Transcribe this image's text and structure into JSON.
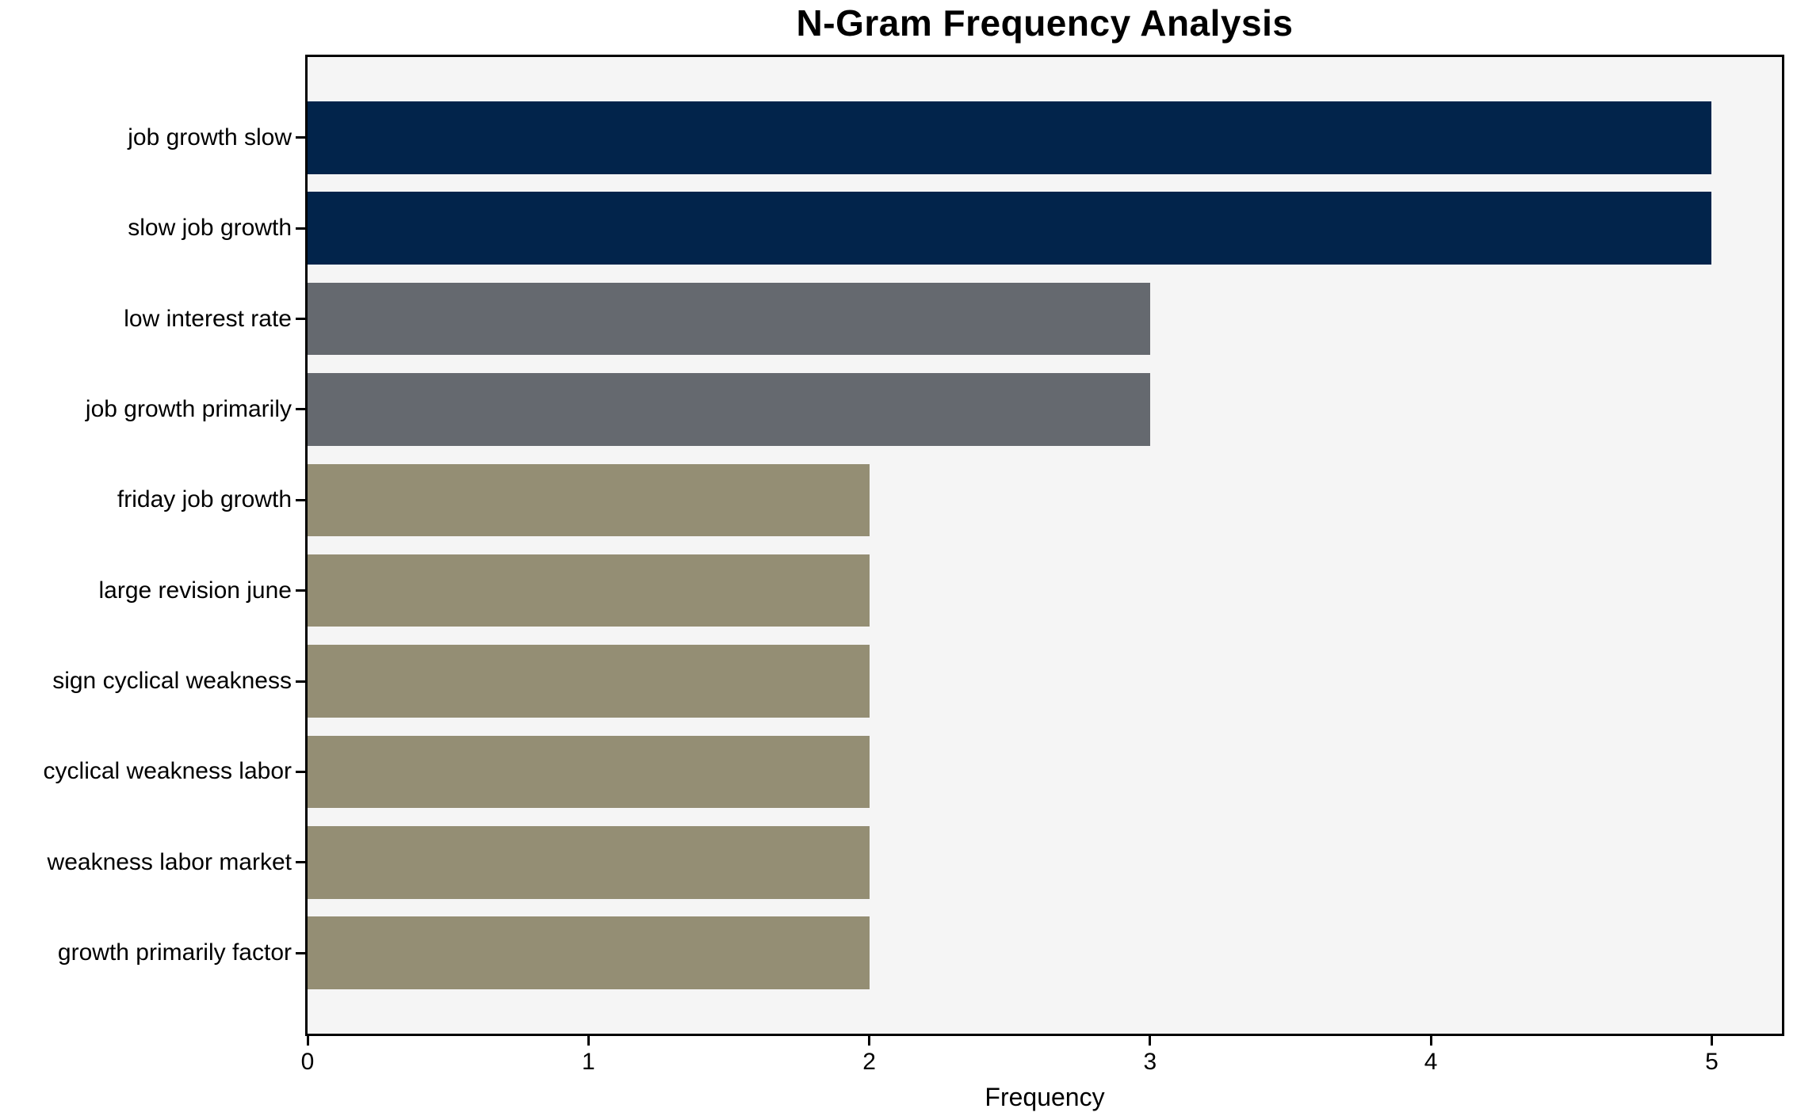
{
  "figure": {
    "background": "#ffffff"
  },
  "chart_data": {
    "type": "bar",
    "orientation": "horizontal",
    "title": "N-Gram Frequency Analysis",
    "xlabel": "Frequency",
    "ylabel": "",
    "categories": [
      "job growth slow",
      "slow job growth",
      "low interest rate",
      "job growth primarily",
      "friday job growth",
      "large revision june",
      "sign cyclical weakness",
      "cyclical weakness labor",
      "weakness labor market",
      "growth primarily factor"
    ],
    "values": [
      5,
      5,
      3,
      3,
      2,
      2,
      2,
      2,
      2,
      2
    ],
    "bar_colors": [
      "#02244b",
      "#02244b",
      "#65696f",
      "#65696f",
      "#948e74",
      "#948e74",
      "#948e74",
      "#948e74",
      "#948e74",
      "#948e74"
    ],
    "xlim": [
      0,
      5.25
    ],
    "xticks": [
      "0",
      "1",
      "2",
      "3",
      "4",
      "5"
    ],
    "grid": false,
    "legend": null,
    "plot_background": "#f5f5f5",
    "spine_color": "#000000",
    "text_color": "#000000",
    "layout": {
      "bar_height": 0.8,
      "y_pad": 0.39,
      "legend_position": "none"
    }
  }
}
